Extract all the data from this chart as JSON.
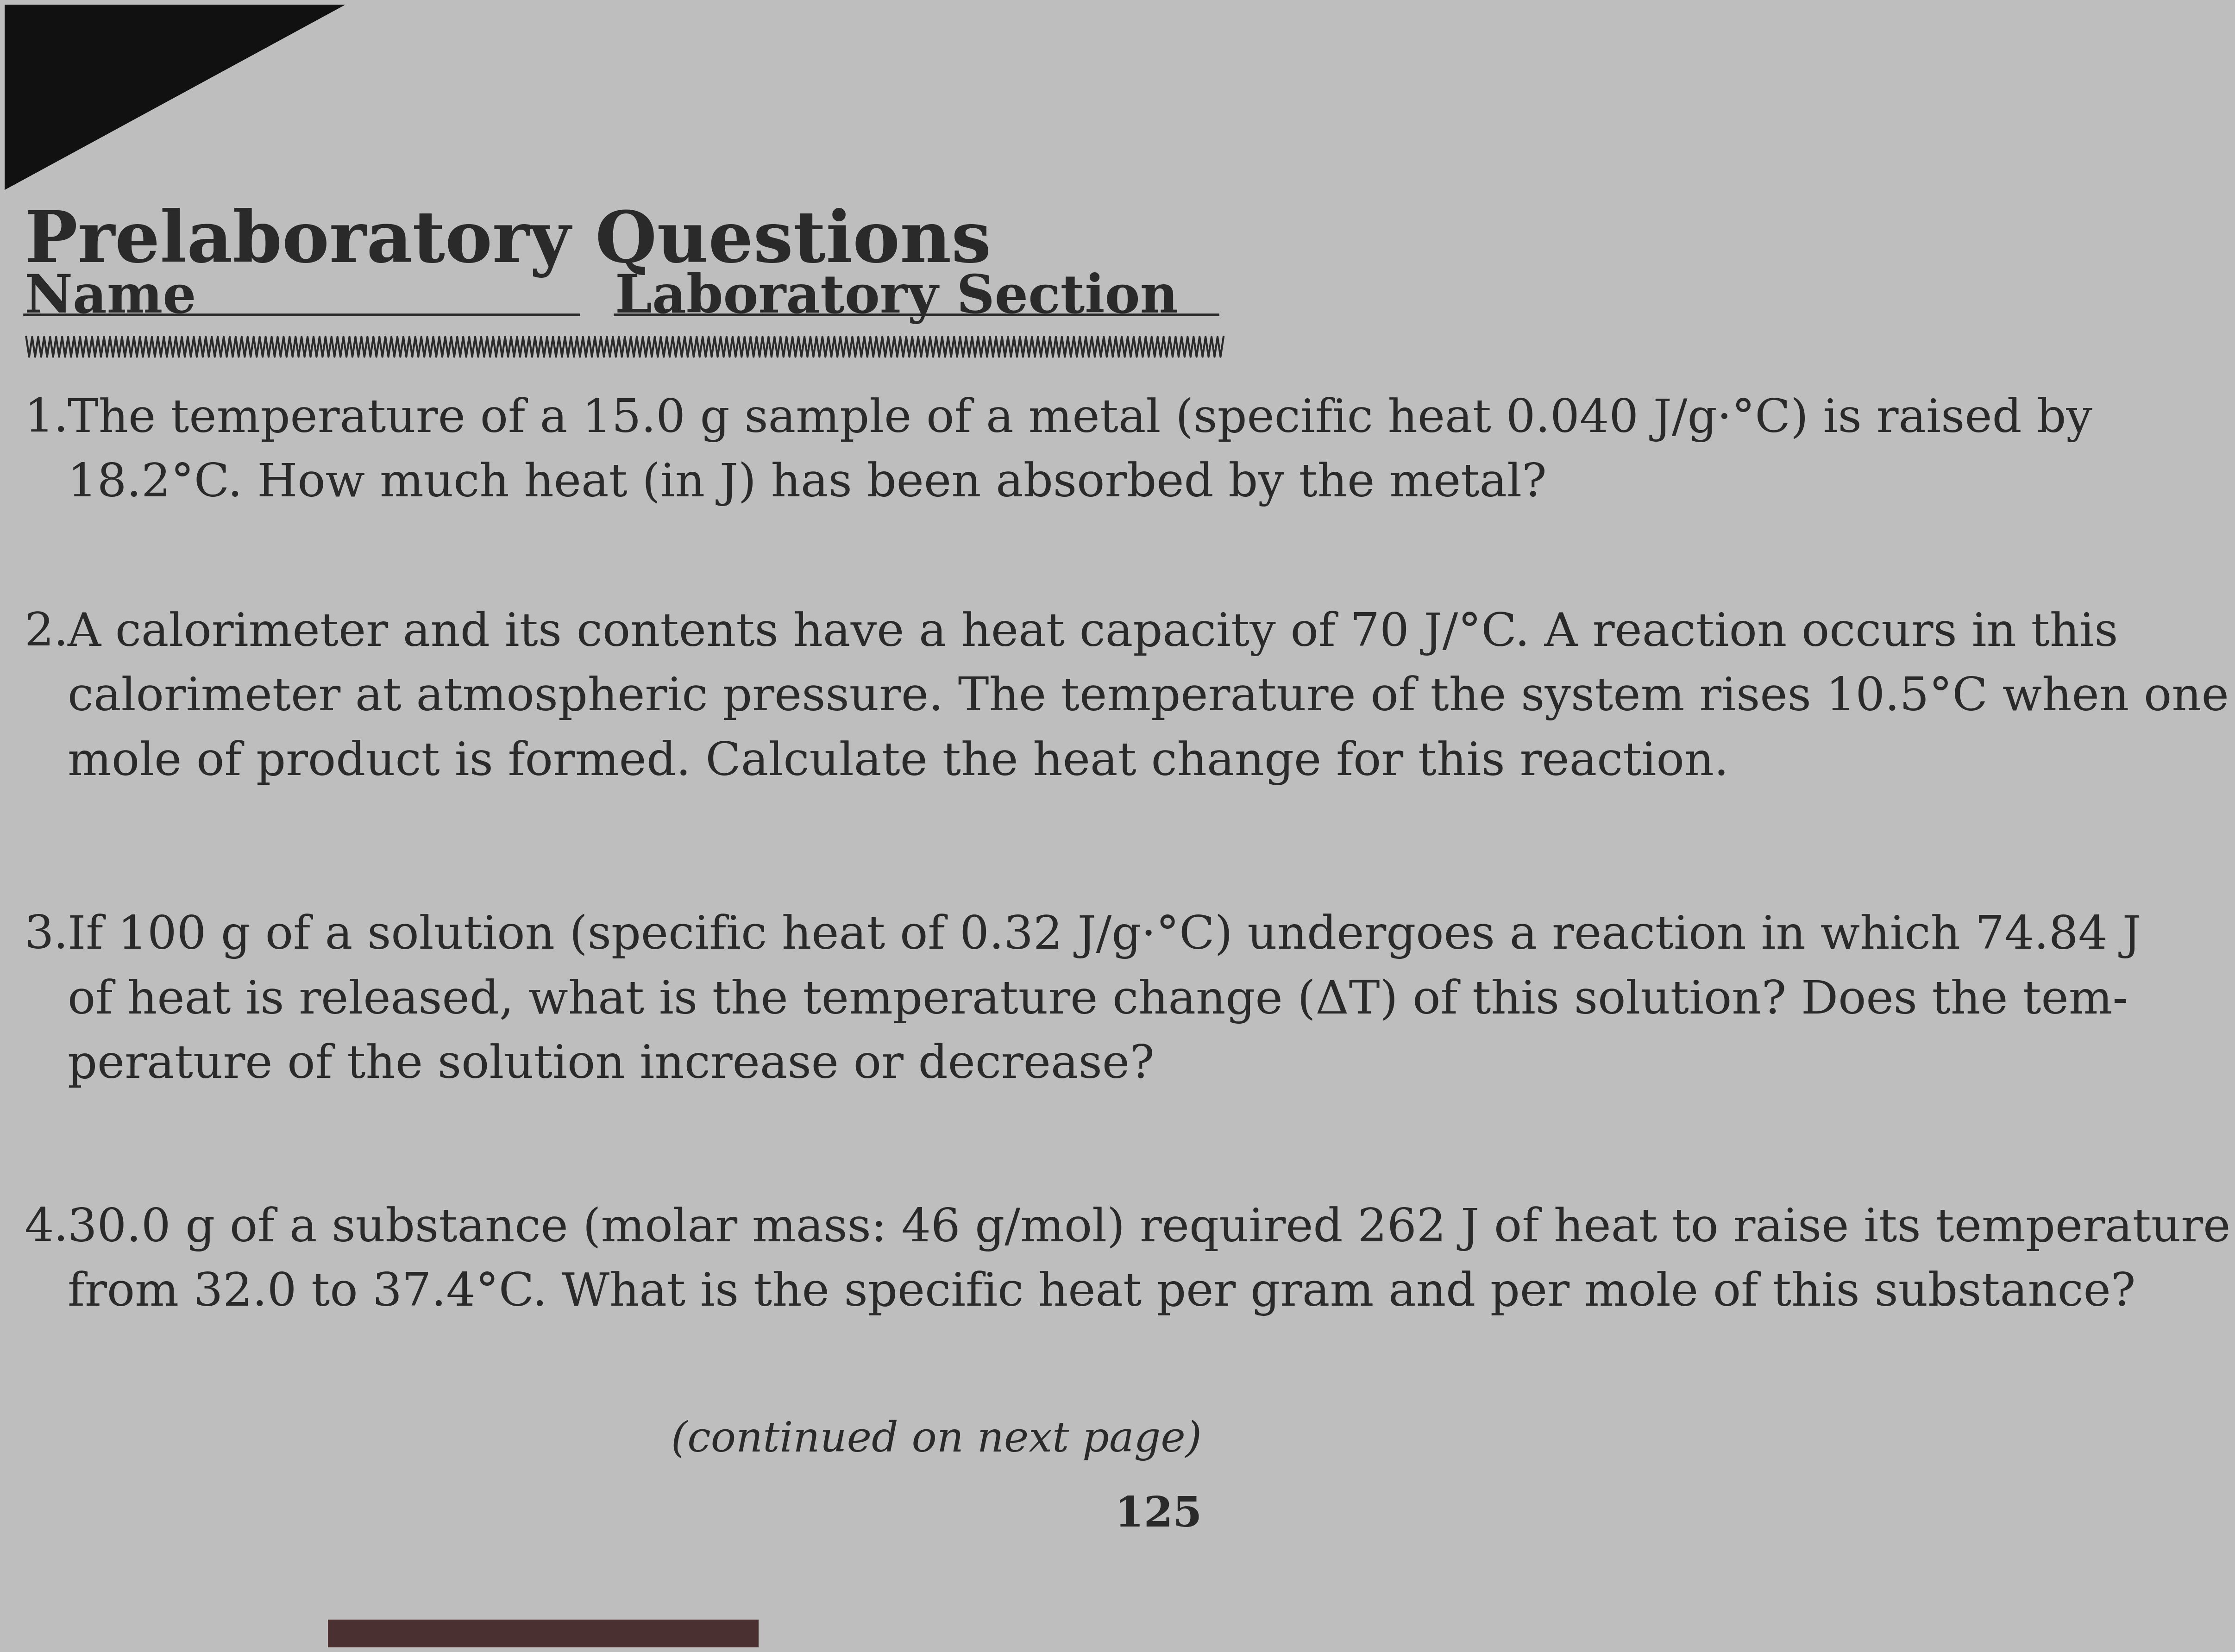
{
  "title": "Prelaboratory Questions",
  "name_label": "Name",
  "lab_section_label": "Laboratory Section",
  "bg_color": "#bebebe",
  "text_color": "#2a2a2a",
  "continued": "(continued on next page)",
  "page_num": "125",
  "dark_color": "#111111",
  "q1_num": "1.",
  "q1_text": "The temperature of a 15.0 g sample of a metal (specific heat 0.040 J/g·°C) is raised by\n18.2°C. How much heat (in J) has been absorbed by the metal?",
  "q2_num": "2.",
  "q2_text": "A calorimeter and its contents have a heat capacity of 70 J/°C. A reaction occurs in this\ncalorimeter at atmospheric pressure. The temperature of the system rises 10.5°C when one\nmole of product is formed. Calculate the heat change for this reaction.",
  "q3_num": "3.",
  "q3_text": "If 100 g of a solution (specific heat of 0.32 J/g·°C) undergoes a reaction in which 74.84 J\nof heat is released, what is the temperature change (ΔT) of this solution? Does the tem-\nperature of the solution increase or decrease?",
  "q4_num": "4.",
  "q4_text": "30.0 g of a substance (molar mass: 46 g/mol) required 262 J of heat to raise its temperature\nfrom 32.0 to 37.4°C. What is the specific heat per gram and per mole of this substance?"
}
